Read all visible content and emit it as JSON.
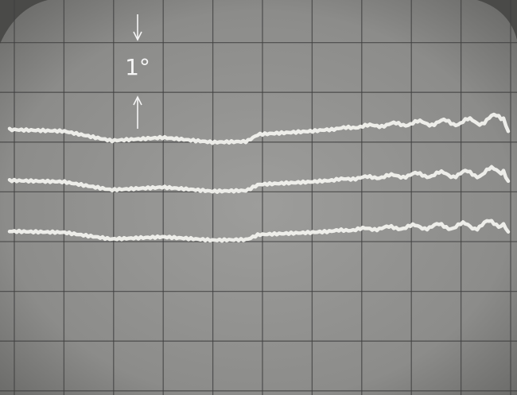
{
  "annotation": {
    "label": "1°"
  }
}
